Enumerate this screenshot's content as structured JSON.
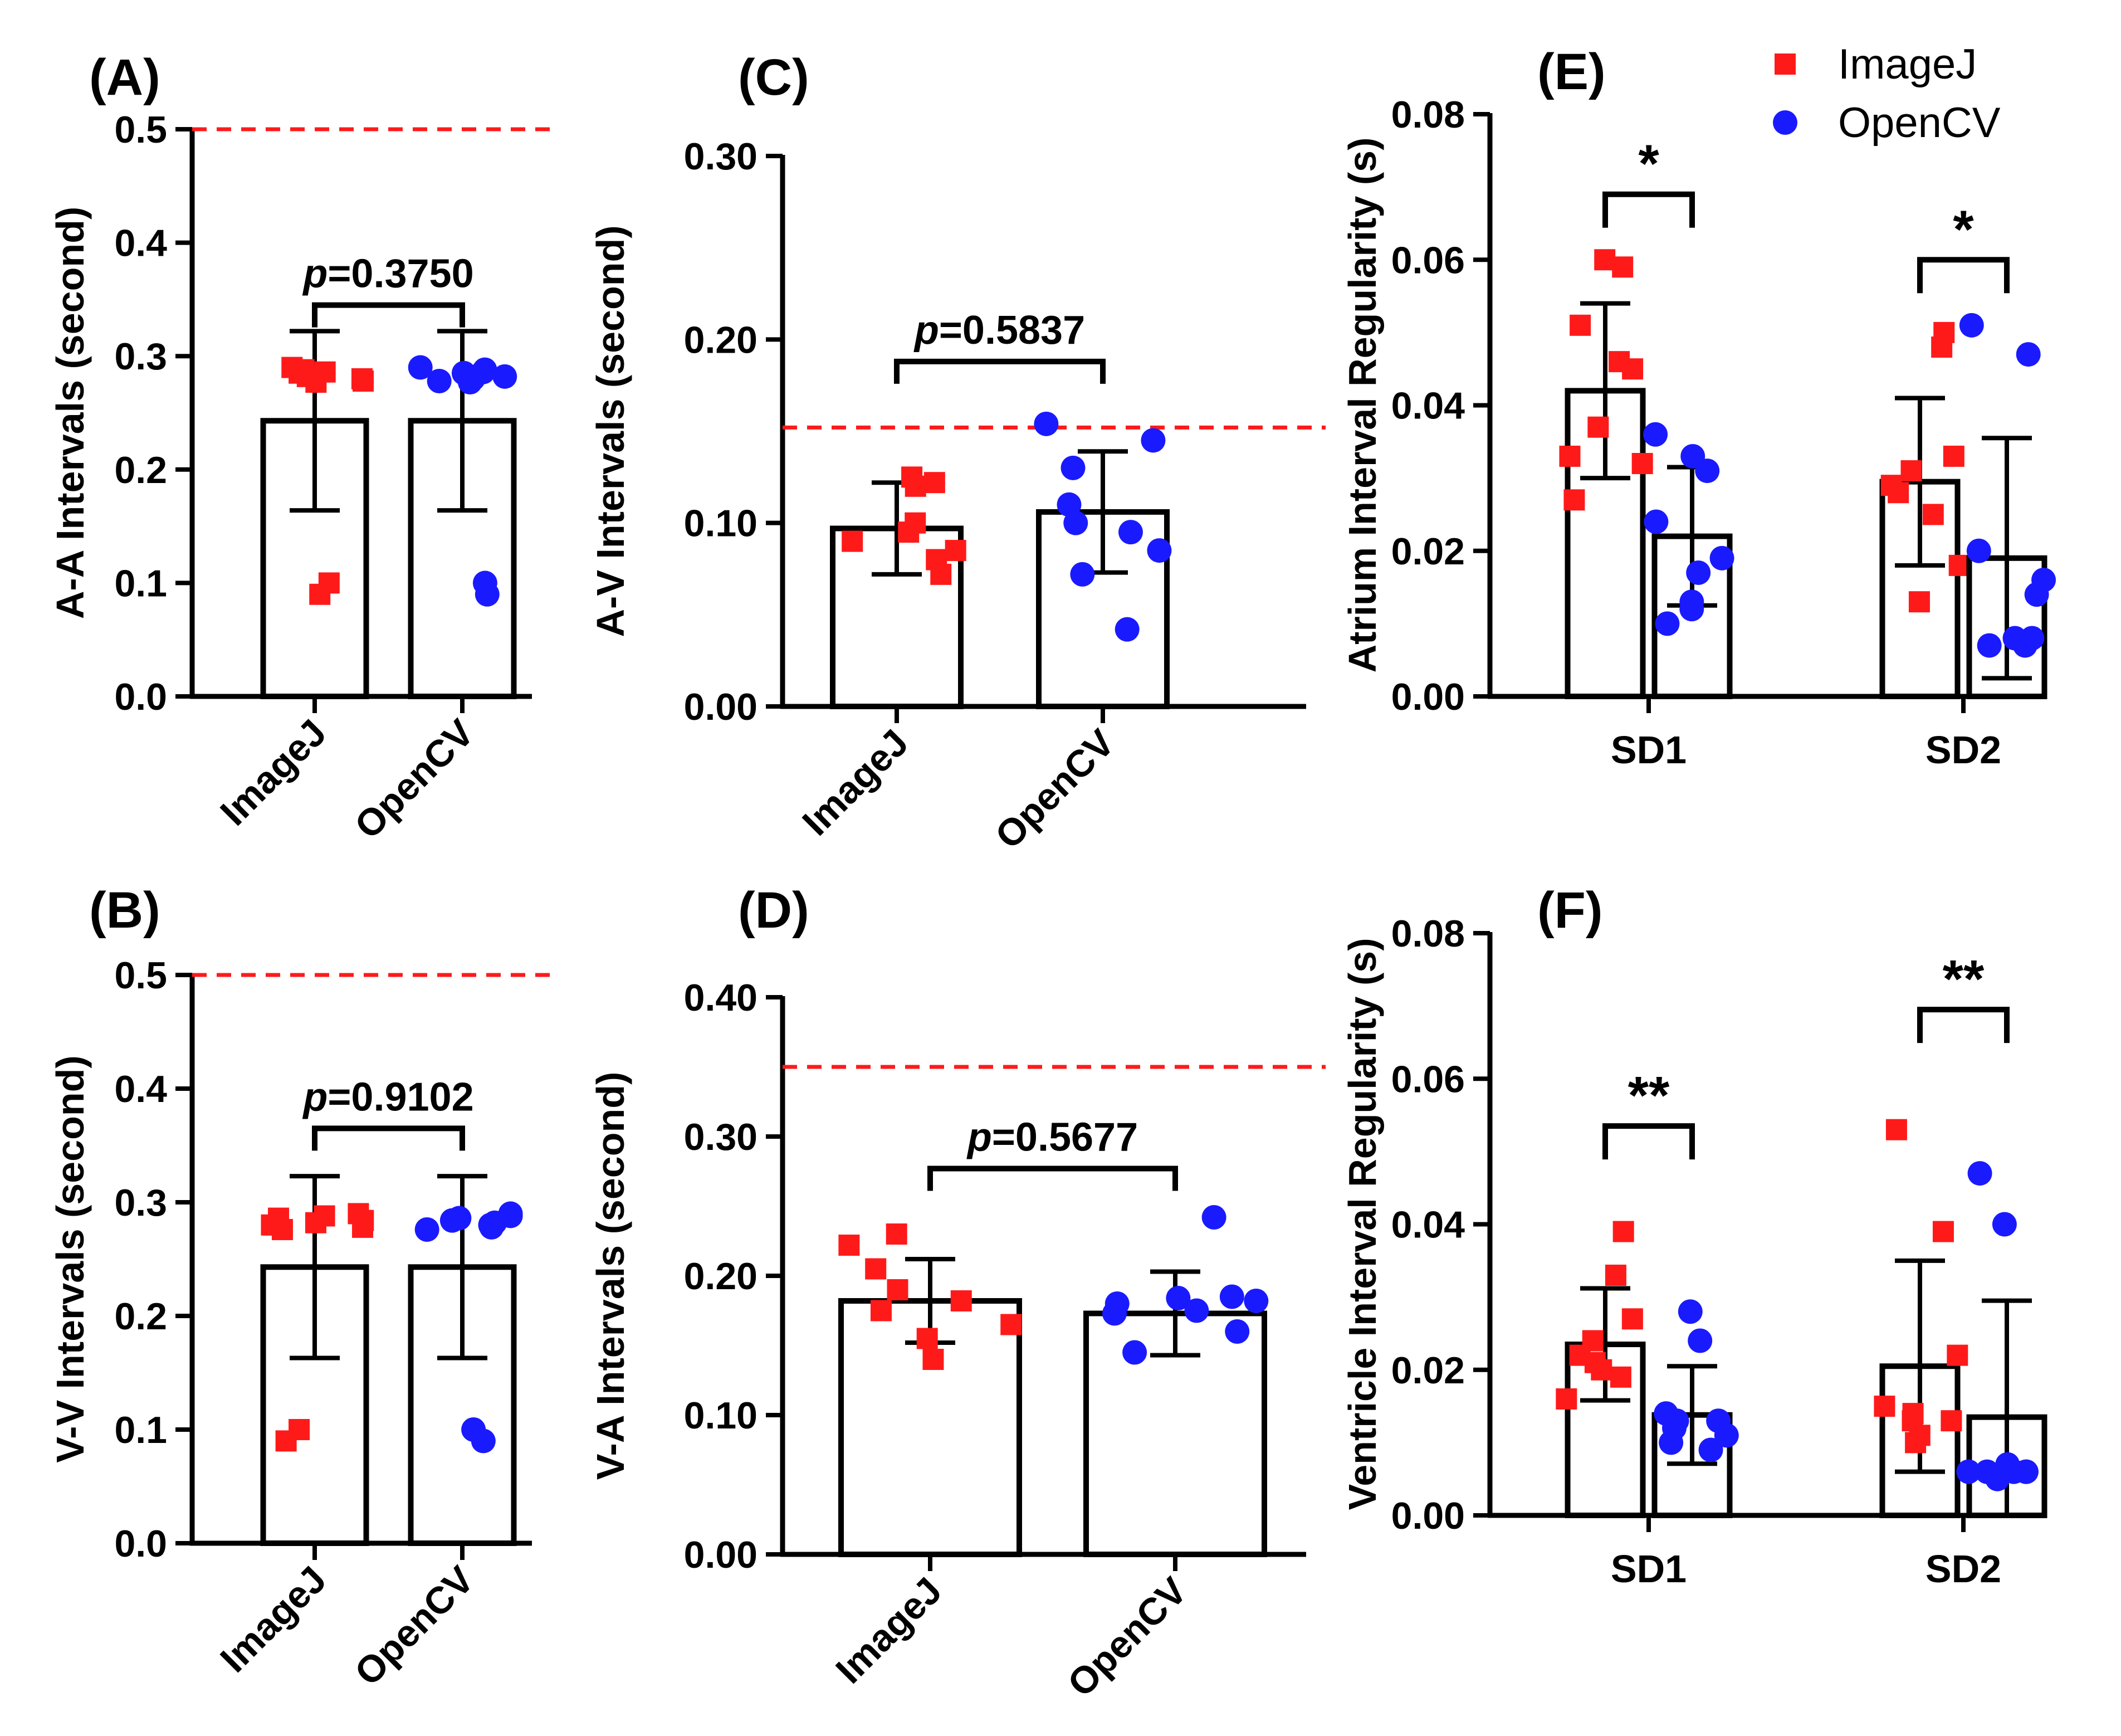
{
  "figure": {
    "colors": {
      "imagej": "#ff1a1a",
      "opencv": "#1a1aff",
      "threshold": "#ff1a1a",
      "axis": "#000000"
    },
    "legend": {
      "items": [
        {
          "label": "ImageJ",
          "marker": "square"
        },
        {
          "label": "OpenCV",
          "marker": "circle"
        }
      ]
    }
  },
  "chart_data": [
    {
      "id": "A",
      "panel_label": "(A)",
      "type": "bar",
      "ylabel": "A-A Intervals (second)",
      "ylim": [
        0,
        0.5
      ],
      "yticks": [
        0.0,
        0.1,
        0.2,
        0.3,
        0.4,
        0.5
      ],
      "ytick_labels": [
        "0.0",
        "0.1",
        "0.2",
        "0.3",
        "0.4",
        "0.5"
      ],
      "threshold": 0.5,
      "categories": [
        "ImageJ",
        "OpenCV"
      ],
      "means": [
        0.243,
        0.243
      ],
      "sd": [
        0.079,
        0.079
      ],
      "points": [
        [
          0.29,
          0.288,
          0.286,
          0.285,
          0.282,
          0.28,
          0.278,
          0.277,
          0.09,
          0.1
        ],
        [
          0.29,
          0.288,
          0.286,
          0.285,
          0.282,
          0.28,
          0.278,
          0.277,
          0.09,
          0.1
        ]
      ],
      "comparisons": [
        {
          "text_italic": "p",
          "text": "=0.3750",
          "y": 0.345
        }
      ]
    },
    {
      "id": "B",
      "panel_label": "(B)",
      "type": "bar",
      "ylabel": "V-V Intervals (second)",
      "ylim": [
        0,
        0.5
      ],
      "yticks": [
        0.0,
        0.1,
        0.2,
        0.3,
        0.4,
        0.5
      ],
      "ytick_labels": [
        "0.0",
        "0.1",
        "0.2",
        "0.3",
        "0.4",
        "0.5"
      ],
      "threshold": 0.5,
      "categories": [
        "ImageJ",
        "OpenCV"
      ],
      "means": [
        0.243,
        0.243
      ],
      "sd": [
        0.08,
        0.08
      ],
      "points": [
        [
          0.29,
          0.288,
          0.286,
          0.284,
          0.282,
          0.28,
          0.278,
          0.276,
          0.09,
          0.1
        ],
        [
          0.29,
          0.288,
          0.286,
          0.284,
          0.282,
          0.28,
          0.278,
          0.276,
          0.09,
          0.1
        ]
      ],
      "comparisons": [
        {
          "text_italic": "p",
          "text": "=0.9102",
          "y": 0.365
        }
      ]
    },
    {
      "id": "C",
      "panel_label": "(C)",
      "type": "bar",
      "ylabel": "A-V Intervals (second)",
      "ylim": [
        0,
        0.3
      ],
      "yticks": [
        0.0,
        0.1,
        0.2,
        0.3
      ],
      "ytick_labels": [
        "0.00",
        "0.10",
        "0.20",
        "0.30"
      ],
      "threshold": 0.152,
      "categories": [
        "ImageJ",
        "OpenCV"
      ],
      "means": [
        0.097,
        0.106
      ],
      "sd": [
        0.025,
        0.033
      ],
      "points": [
        [
          0.125,
          0.122,
          0.12,
          0.1,
          0.095,
          0.09,
          0.085,
          0.08,
          0.072
        ],
        [
          0.154,
          0.145,
          0.13,
          0.11,
          0.1,
          0.095,
          0.085,
          0.072,
          0.042
        ]
      ],
      "comparisons": [
        {
          "text_italic": "p",
          "text": "=0.5837",
          "y": 0.188
        }
      ]
    },
    {
      "id": "D",
      "panel_label": "(D)",
      "type": "bar",
      "ylabel": "V-A Intervals (second)",
      "ylim": [
        0,
        0.4
      ],
      "yticks": [
        0.0,
        0.1,
        0.2,
        0.3,
        0.4
      ],
      "ytick_labels": [
        "0.00",
        "0.10",
        "0.20",
        "0.30",
        "0.40"
      ],
      "threshold": 0.35,
      "categories": [
        "ImageJ",
        "OpenCV"
      ],
      "means": [
        0.182,
        0.173
      ],
      "sd": [
        0.03,
        0.03
      ],
      "points": [
        [
          0.23,
          0.222,
          0.205,
          0.19,
          0.182,
          0.175,
          0.165,
          0.155,
          0.14
        ],
        [
          0.242,
          0.185,
          0.184,
          0.182,
          0.18,
          0.175,
          0.173,
          0.16,
          0.145
        ]
      ],
      "comparisons": [
        {
          "text_italic": "p",
          "text": "=0.5677",
          "y": 0.277
        }
      ]
    },
    {
      "id": "E",
      "panel_label": "(E)",
      "type": "bar",
      "ylabel": "Atrium Interval Regularity (s)",
      "ylim": [
        0,
        0.08
      ],
      "yticks": [
        0.0,
        0.02,
        0.04,
        0.06,
        0.08
      ],
      "ytick_labels": [
        "0.00",
        "0.02",
        "0.04",
        "0.06",
        "0.08"
      ],
      "threshold": null,
      "groups": [
        "SD1",
        "SD2"
      ],
      "series": [
        {
          "name": "ImageJ",
          "means": [
            0.042,
            0.0295
          ],
          "sd": [
            0.012,
            0.0115
          ],
          "points": [
            [
              0.06,
              0.059,
              0.051,
              0.046,
              0.045,
              0.037,
              0.033,
              0.032,
              0.027
            ],
            [
              0.05,
              0.048,
              0.033,
              0.031,
              0.029,
              0.028,
              0.025,
              0.018,
              0.013
            ]
          ]
        },
        {
          "name": "OpenCV",
          "means": [
            0.022,
            0.019
          ],
          "sd": [
            0.0095,
            0.0165
          ],
          "points": [
            [
              0.036,
              0.033,
              0.031,
              0.024,
              0.019,
              0.017,
              0.013,
              0.012,
              0.01
            ],
            [
              0.051,
              0.047,
              0.02,
              0.016,
              0.014,
              0.008,
              0.008,
              0.007,
              0.007
            ]
          ]
        }
      ],
      "comparisons": [
        {
          "group": 0,
          "text": "*",
          "y": 0.069
        },
        {
          "group": 1,
          "text": "*",
          "y": 0.06
        }
      ]
    },
    {
      "id": "F",
      "panel_label": "(F)",
      "type": "bar",
      "ylabel": "Ventricle Interval Regularity (s)",
      "ylim": [
        0,
        0.08
      ],
      "yticks": [
        0.0,
        0.02,
        0.04,
        0.06,
        0.08
      ],
      "ytick_labels": [
        "0.00",
        "0.02",
        "0.04",
        "0.06",
        "0.08"
      ],
      "threshold": null,
      "groups": [
        "SD1",
        "SD2"
      ],
      "series": [
        {
          "name": "ImageJ",
          "means": [
            0.0235,
            0.0205
          ],
          "sd": [
            0.0077,
            0.0145
          ],
          "points": [
            [
              0.039,
              0.033,
              0.027,
              0.024,
              0.022,
              0.021,
              0.02,
              0.019,
              0.016
            ],
            [
              0.053,
              0.039,
              0.022,
              0.015,
              0.014,
              0.013,
              0.013,
              0.011,
              0.01
            ]
          ]
        },
        {
          "name": "OpenCV",
          "means": [
            0.0138,
            0.0135
          ],
          "sd": [
            0.0067,
            0.016
          ],
          "points": [
            [
              0.028,
              0.024,
              0.014,
              0.013,
              0.013,
              0.012,
              0.011,
              0.01,
              0.009
            ],
            [
              0.047,
              0.04,
              0.007,
              0.006,
              0.006,
              0.006,
              0.006,
              0.006,
              0.005
            ]
          ]
        }
      ],
      "comparisons": [
        {
          "group": 0,
          "text": "**",
          "y": 0.0535
        },
        {
          "group": 1,
          "text": "**",
          "y": 0.0695
        }
      ]
    }
  ]
}
